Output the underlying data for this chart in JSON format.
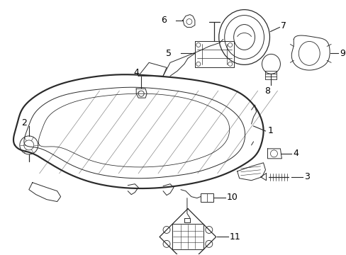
{
  "bg_color": "#ffffff",
  "fig_width": 4.89,
  "fig_height": 3.6,
  "dpi": 100,
  "line_color": "#2a2a2a",
  "text_color": "#000000",
  "label_fontsize": 9.0
}
